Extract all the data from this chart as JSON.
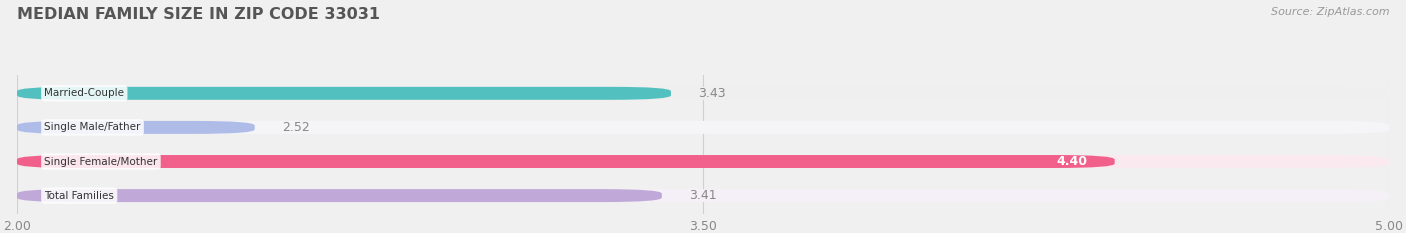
{
  "title": "MEDIAN FAMILY SIZE IN ZIP CODE 33031",
  "source": "Source: ZipAtlas.com",
  "categories": [
    "Married-Couple",
    "Single Male/Father",
    "Single Female/Mother",
    "Total Families"
  ],
  "values": [
    3.43,
    2.52,
    4.4,
    3.41
  ],
  "bar_colors": [
    "#52c0be",
    "#b0bce8",
    "#f0608a",
    "#c0a8d8"
  ],
  "bar_bg_colors": [
    "#efefef",
    "#f5f5f8",
    "#faeaef",
    "#f5f0f8"
  ],
  "xlim": [
    2.0,
    5.0
  ],
  "xticks": [
    2.0,
    3.5,
    5.0
  ],
  "title_color": "#555555",
  "source_color": "#999999",
  "bar_height": 0.38,
  "background_color": "#f0f0f0",
  "value_inside_color": "#ffffff",
  "value_outside_color": "#888888"
}
